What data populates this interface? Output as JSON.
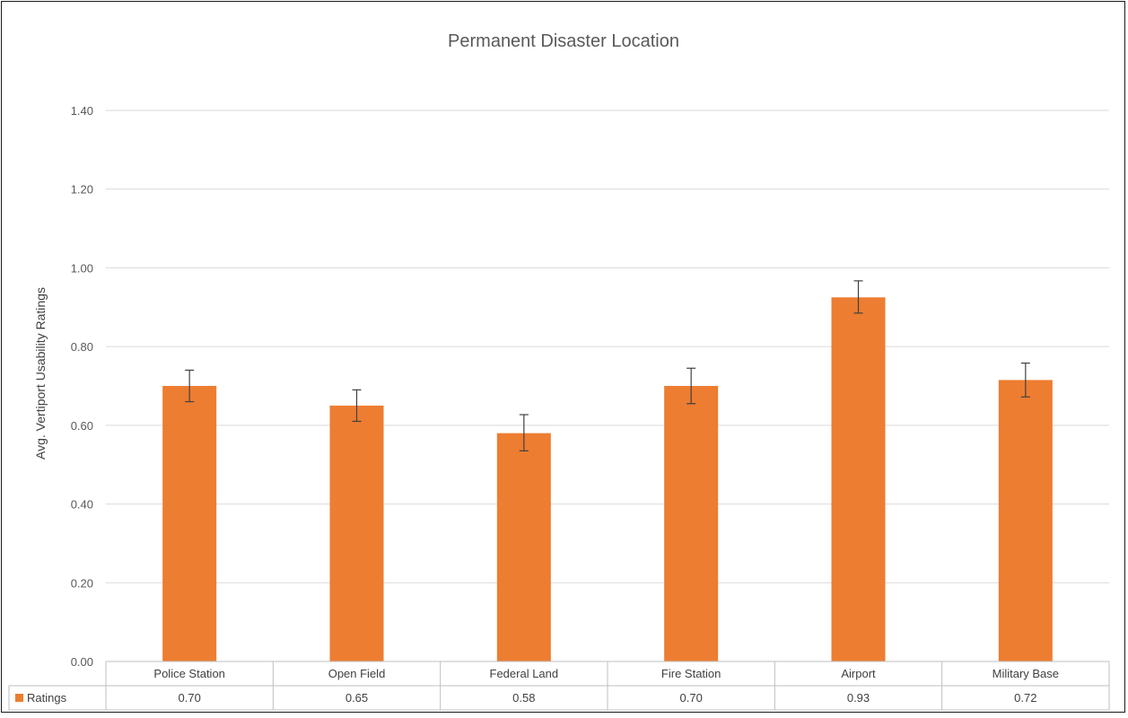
{
  "chart_data": {
    "type": "bar",
    "title": "Permanent Disaster Location",
    "ylabel": "Avg. Vertiport Usability Ratings",
    "xlabel": "",
    "ylim": [
      0,
      1.4
    ],
    "y_ticks": [
      "0.00",
      "0.20",
      "0.40",
      "0.60",
      "0.80",
      "1.00",
      "1.20",
      "1.40"
    ],
    "y_tick_values": [
      0,
      0.2,
      0.4,
      0.6,
      0.8,
      1.0,
      1.2,
      1.4
    ],
    "categories": [
      "Police Station",
      "Open Field",
      "Federal Land",
      "Fire Station",
      "Airport",
      "Military Base"
    ],
    "series": [
      {
        "name": "Ratings",
        "values": [
          0.7,
          0.65,
          0.58,
          0.7,
          0.925,
          0.715
        ],
        "value_labels": [
          "0.70",
          "0.65",
          "0.58",
          "0.70",
          "0.93",
          "0.72"
        ],
        "error_low": [
          0.66,
          0.61,
          0.535,
          0.655,
          0.885,
          0.672
        ],
        "error_high": [
          0.74,
          0.69,
          0.627,
          0.745,
          0.967,
          0.758
        ],
        "color": "#ED7D31"
      }
    ],
    "grid": true,
    "legend": "data-table",
    "data_table": true
  }
}
